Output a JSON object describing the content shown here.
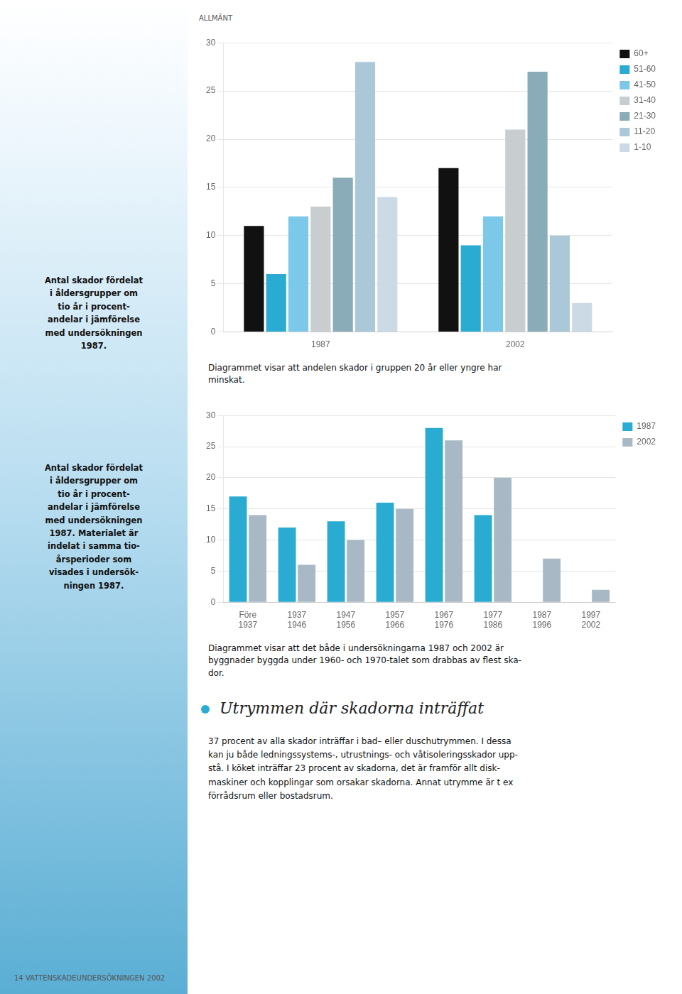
{
  "chart_data": [
    {
      "type": "bar",
      "categories": [
        "1987",
        "2002"
      ],
      "series": [
        {
          "name": "60+",
          "color": "#111111",
          "values": [
            11,
            17
          ]
        },
        {
          "name": "51-60",
          "color": "#2aabd2",
          "values": [
            6,
            9
          ]
        },
        {
          "name": "41-50",
          "color": "#7cc8e8",
          "values": [
            12,
            12
          ]
        },
        {
          "name": "31-40",
          "color": "#c8cdd0",
          "values": [
            13,
            21
          ]
        },
        {
          "name": "21-30",
          "color": "#8aabb8",
          "values": [
            16,
            27
          ]
        },
        {
          "name": "11-20",
          "color": "#aac8d8",
          "values": [
            28,
            10
          ]
        },
        {
          "name": "1-10",
          "color": "#ccdae6",
          "values": [
            14,
            3
          ]
        }
      ],
      "ylim": [
        0,
        30
      ],
      "yticks": [
        0,
        5,
        10,
        15,
        20,
        25,
        30
      ],
      "grid": true,
      "legend": "right",
      "annotations": [
        "Diagrammet visar att andelen skador i gruppen 20 år eller yngre har\nminskat."
      ]
    },
    {
      "type": "bar",
      "categories": [
        "Före\n1937",
        "1937\n1946",
        "1947\n1956",
        "1957\n1966",
        "1967\n1976",
        "1977\n1986",
        "1987\n1996",
        "1997\n2002"
      ],
      "series": [
        {
          "name": "1987",
          "color": "#2aabd2",
          "values": [
            17,
            12,
            13,
            16,
            28,
            14,
            0,
            0
          ]
        },
        {
          "name": "2002",
          "color": "#a8b8c4",
          "values": [
            14,
            6,
            10,
            15,
            26,
            20,
            7,
            2
          ]
        }
      ],
      "ylim": [
        0,
        30
      ],
      "yticks": [
        0,
        5,
        10,
        15,
        20,
        25,
        30
      ],
      "grid": true,
      "legend": "right",
      "annotations": [
        "Diagrammet visar att det både i undersökningarna 1987 och 2002 är\nbyggnader byggda under 1960- och 1970-talet som drabbas av flest ska-\ndor."
      ]
    }
  ],
  "header": "ALLMÄNT",
  "footer": "14    VATTENSKADEUNDERSÖKNINGEN 2002",
  "side_texts": [
    "Antal skador fördelat\ni åldersgrupper om\ntio år i procent-\nandelar i jämförelse\nmed undersökningen\n1987.",
    "Antal skador fördelat\ni åldersgrupper om\ntio år i procent-\nandelar i jämförelse\nmed undersökningen\n1987. Materialet är\nindelat i samma tio-\nårsperioder som\nvisades i undersök-\nningen 1987."
  ],
  "section_title": "Utrymmen där skadorna inträffat",
  "section_text": "37 procent av alla skador inträffar i bad– eller duschutrymmen. I dessa\nkan ju både ledningssystems-, utrustnings- och våtisoleringsskador upp-\nstå. I köket inträffar 23 procent av skadorna, det är framför allt disk-\nmaskiner och kopplingar som orsakar skadorna. Annat utrymme är t ex\nförrådsrum eller bostadsrum."
}
